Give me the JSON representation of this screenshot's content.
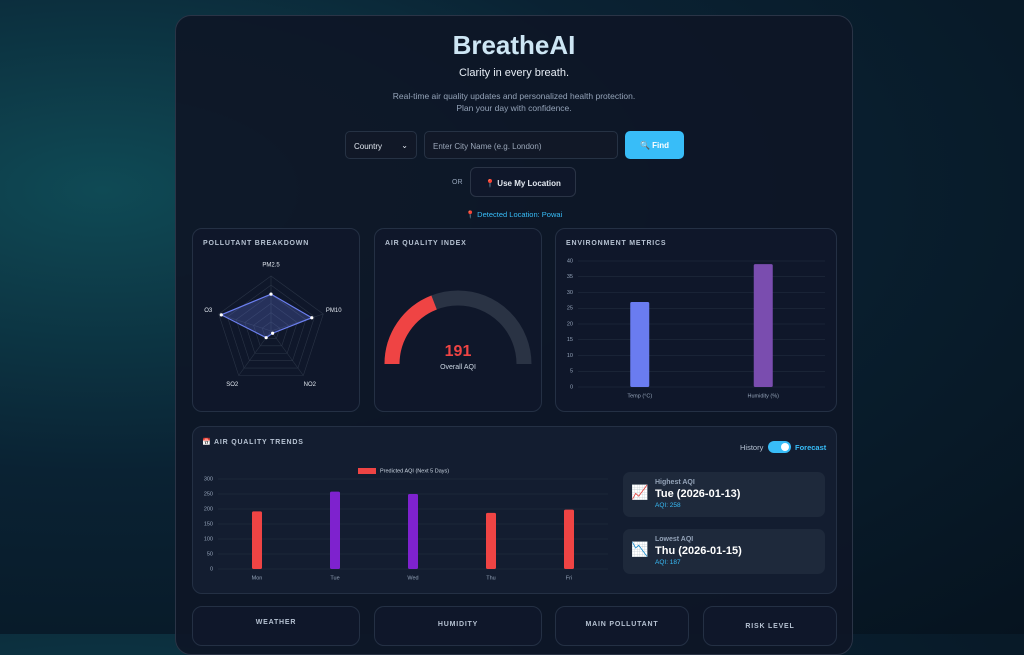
{
  "header": {
    "title": "BreatheAI",
    "tagline": "Clarity in every breath.",
    "description": [
      "Real-time air quality updates and personalized health protection.",
      "Plan your day with confidence."
    ]
  },
  "search": {
    "country": "Country",
    "placeholder": "Enter City Name (e.g. London)",
    "button": "🔍 Find",
    "or": "OR",
    "location_button": "📍 Use My Location",
    "detected": "📍 Detected Location: Powai"
  },
  "chart_data": [
    {
      "type": "radar",
      "title": "POLLUTANT BREAKDOWN",
      "categories": [
        "PM2.5",
        "PM10",
        "NO2",
        "SO2",
        "O3"
      ],
      "values": [
        67,
        78,
        5,
        15,
        95
      ],
      "rlim": [
        0,
        100
      ],
      "color": "#6b7ff0"
    },
    {
      "type": "gauge",
      "title": "AIR QUALITY INDEX",
      "value": 191,
      "label": "Overall AQI",
      "lim": [
        0,
        500
      ],
      "color": "#ef4444"
    },
    {
      "type": "bar",
      "title": "ENVIRONMENT METRICS",
      "categories": [
        "Temp (°C)",
        "Humidity (%)"
      ],
      "values": [
        27,
        39
      ],
      "colors": [
        "#6a7cf0",
        "#7a4daf"
      ],
      "ylim": [
        0,
        40
      ],
      "yticks": [
        0,
        5,
        10,
        15,
        20,
        25,
        30,
        35,
        40
      ],
      "grid": true
    },
    {
      "type": "bar",
      "title": "📅 AIR QUALITY TRENDS",
      "categories": [
        "Mon",
        "Tue",
        "Wed",
        "Thu",
        "Fri"
      ],
      "series": [
        {
          "name": "Predicted AQI (Next 5 Days)",
          "color": "#ef4444",
          "colors": [
            "#ef4444",
            "#7e22ce",
            "#7e22ce",
            "#ef4444",
            "#ef4444"
          ],
          "values": [
            192,
            258,
            250,
            187,
            198
          ]
        }
      ],
      "ylim": [
        0,
        300
      ],
      "yticks": [
        0,
        50,
        100,
        150,
        200,
        250,
        300
      ],
      "grid": true
    }
  ],
  "toggle": {
    "left": "History",
    "right": "Forecast"
  },
  "summary": [
    {
      "icon": "📈",
      "label": "Highest AQI",
      "day": "Tue (2026-01-13)",
      "aqi": "AQI: 258"
    },
    {
      "icon": "📉",
      "label": "Lowest AQI",
      "day": "Thu (2026-01-15)",
      "aqi": "AQI: 187"
    }
  ],
  "cards": [
    "WEATHER",
    "HUMIDITY",
    "MAIN POLLUTANT",
    "RISK LEVEL"
  ]
}
